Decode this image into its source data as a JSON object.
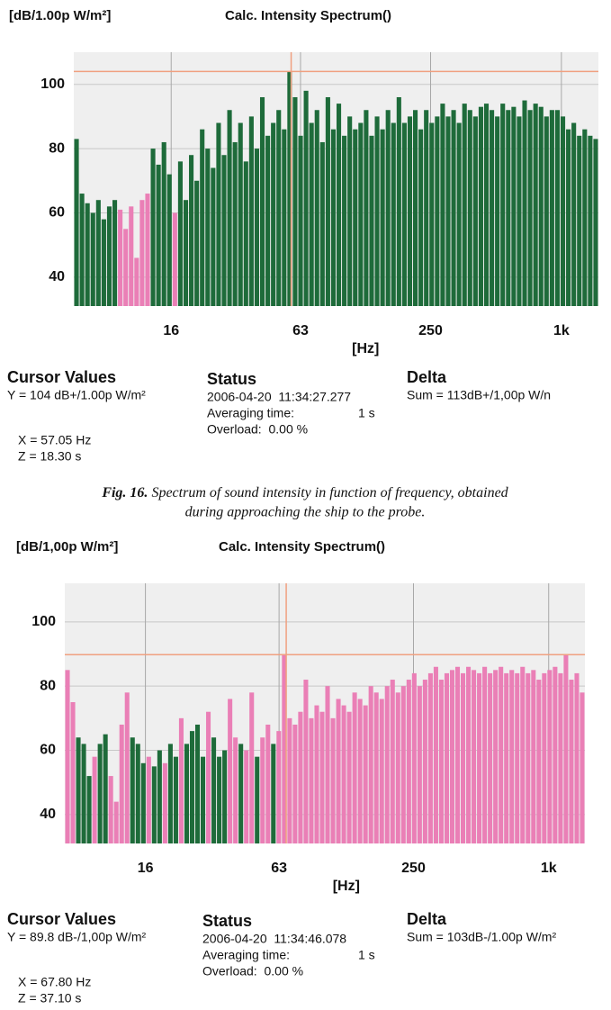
{
  "chart_data": [
    {
      "type": "bar",
      "y_unit": "[dB/1.00p W/m²]",
      "title": "Calc. Intensity Spectrum()",
      "x_label": "[Hz]",
      "xscale": "log",
      "xlim": [
        5.7,
        1480
      ],
      "xticks": [
        16,
        63,
        250,
        {
          "value": 1000,
          "label": "1k"
        }
      ],
      "ylim": [
        31,
        110
      ],
      "yticks": [
        40,
        60,
        80,
        100
      ],
      "grid": true,
      "categories": [
        null,
        null,
        null,
        null,
        null,
        null,
        null,
        null,
        null,
        null,
        null,
        null,
        null,
        null,
        null,
        null,
        null,
        null,
        null,
        null,
        null,
        null,
        null,
        null,
        null,
        null,
        null,
        null,
        null,
        null,
        null,
        null,
        null,
        null,
        null,
        null,
        null,
        null,
        null,
        null,
        null,
        null,
        null,
        null,
        null,
        null,
        null,
        null,
        null,
        null,
        null,
        null,
        null,
        null,
        null,
        null,
        null,
        null,
        null,
        null,
        null,
        null,
        null,
        null,
        null,
        null,
        null,
        null,
        null,
        null,
        null,
        null,
        null,
        null,
        null,
        null,
        null,
        null,
        null,
        null,
        null,
        null,
        null,
        null,
        null,
        null,
        null,
        null,
        null,
        null,
        null,
        null,
        null,
        null,
        null,
        null
      ],
      "values": [
        83,
        66,
        63,
        60,
        64,
        58,
        62,
        64,
        61,
        55,
        62,
        46,
        64,
        66,
        80,
        75,
        82,
        72,
        60,
        76,
        64,
        78,
        70,
        86,
        80,
        74,
        88,
        78,
        92,
        82,
        88,
        76,
        90,
        80,
        96,
        84,
        88,
        92,
        86,
        104,
        96,
        84,
        98,
        88,
        92,
        82,
        96,
        86,
        94,
        84,
        90,
        86,
        88,
        92,
        84,
        90,
        86,
        92,
        88,
        96,
        88,
        90,
        92,
        86,
        92,
        88,
        90,
        94,
        90,
        92,
        88,
        94,
        92,
        90,
        93,
        94,
        92,
        90,
        94,
        92,
        93,
        90,
        95,
        92,
        94,
        93,
        90,
        92,
        92,
        90,
        86,
        88,
        84,
        86,
        84,
        83
      ],
      "colors": [
        "#1e6b3a",
        "#1e6b3a",
        "#1e6b3a",
        "#1e6b3a",
        "#1e6b3a",
        "#1e6b3a",
        "#1e6b3a",
        "#1e6b3a",
        "#ea7fb6",
        "#ea7fb6",
        "#ea7fb6",
        "#ea7fb6",
        "#ea7fb6",
        "#ea7fb6",
        "#1e6b3a",
        "#1e6b3a",
        "#1e6b3a",
        "#1e6b3a",
        "#ea7fb6",
        "#1e6b3a",
        "#1e6b3a",
        "#1e6b3a",
        "#1e6b3a",
        "#1e6b3a",
        "#1e6b3a",
        "#1e6b3a",
        "#1e6b3a",
        "#1e6b3a",
        "#1e6b3a",
        "#1e6b3a",
        "#1e6b3a",
        "#1e6b3a",
        "#1e6b3a",
        "#1e6b3a",
        "#1e6b3a",
        "#1e6b3a",
        "#1e6b3a",
        "#1e6b3a",
        "#1e6b3a",
        "#1e6b3a",
        "#1e6b3a",
        "#1e6b3a",
        "#1e6b3a",
        "#1e6b3a",
        "#1e6b3a",
        "#1e6b3a",
        "#1e6b3a",
        "#1e6b3a",
        "#1e6b3a",
        "#1e6b3a",
        "#1e6b3a",
        "#1e6b3a",
        "#1e6b3a",
        "#1e6b3a",
        "#1e6b3a",
        "#1e6b3a",
        "#1e6b3a",
        "#1e6b3a",
        "#1e6b3a",
        "#1e6b3a",
        "#1e6b3a",
        "#1e6b3a",
        "#1e6b3a",
        "#1e6b3a",
        "#1e6b3a",
        "#1e6b3a",
        "#1e6b3a",
        "#1e6b3a",
        "#1e6b3a",
        "#1e6b3a",
        "#1e6b3a",
        "#1e6b3a",
        "#1e6b3a",
        "#1e6b3a",
        "#1e6b3a",
        "#1e6b3a",
        "#1e6b3a",
        "#1e6b3a",
        "#1e6b3a",
        "#1e6b3a",
        "#1e6b3a",
        "#1e6b3a",
        "#1e6b3a",
        "#1e6b3a",
        "#1e6b3a",
        "#1e6b3a",
        "#1e6b3a",
        "#1e6b3a",
        "#1e6b3a",
        "#1e6b3a",
        "#1e6b3a",
        "#1e6b3a",
        "#1e6b3a",
        "#1e6b3a",
        "#1e6b3a",
        "#1e6b3a"
      ],
      "cursor": {
        "x": 57.05,
        "y": 104,
        "color": "#f0a080"
      },
      "cursor_values": {
        "title": "Cursor Values",
        "y": "Y = 104 dB+/1.00p W/m²",
        "x": "X = 57.05 Hz",
        "z": "Z = 18.30 s"
      },
      "status": {
        "title": "Status",
        "time": "2006-04-20  11:34:27.277",
        "averaging_label": "Averaging time:",
        "averaging_value": "1 s",
        "overload": "Overload:  0.00 %"
      },
      "delta": {
        "title": "Delta",
        "sum": "Sum = 113dB+/1,00p W/n"
      }
    },
    {
      "type": "bar",
      "y_unit": "[dB/1,00p W/m²]",
      "title": "Calc. Intensity Spectrum()",
      "x_label": "[Hz]",
      "xscale": "log",
      "xlim": [
        7,
        1450
      ],
      "xticks": [
        16,
        63,
        250,
        {
          "value": 1000,
          "label": "1k"
        }
      ],
      "ylim": [
        31,
        112
      ],
      "yticks": [
        40,
        60,
        80,
        100
      ],
      "grid": true,
      "categories": [
        null,
        null,
        null,
        null,
        null,
        null,
        null,
        null,
        null,
        null,
        null,
        null,
        null,
        null,
        null,
        null,
        null,
        null,
        null,
        null,
        null,
        null,
        null,
        null,
        null,
        null,
        null,
        null,
        null,
        null,
        null,
        null,
        null,
        null,
        null,
        null,
        null,
        null,
        null,
        null,
        null,
        null,
        null,
        null,
        null,
        null,
        null,
        null,
        null,
        null,
        null,
        null,
        null,
        null,
        null,
        null,
        null,
        null,
        null,
        null,
        null,
        null,
        null,
        null,
        null,
        null,
        null,
        null,
        null,
        null,
        null,
        null,
        null,
        null,
        null,
        null,
        null,
        null,
        null,
        null,
        null,
        null,
        null,
        null,
        null,
        null,
        null,
        null,
        null,
        null,
        null,
        null,
        null,
        null,
        null,
        null
      ],
      "values": [
        85,
        75,
        64,
        62,
        52,
        58,
        62,
        65,
        52,
        44,
        68,
        78,
        64,
        62,
        56,
        58,
        55,
        60,
        56,
        62,
        58,
        70,
        62,
        66,
        68,
        58,
        72,
        64,
        58,
        60,
        76,
        64,
        62,
        60,
        78,
        58,
        64,
        68,
        62,
        66,
        90,
        70,
        68,
        72,
        82,
        70,
        74,
        72,
        80,
        70,
        76,
        74,
        72,
        78,
        76,
        74,
        80,
        78,
        76,
        80,
        82,
        78,
        80,
        82,
        84,
        80,
        82,
        84,
        86,
        82,
        84,
        85,
        86,
        84,
        86,
        85,
        84,
        86,
        84,
        85,
        86,
        84,
        85,
        84,
        86,
        84,
        85,
        82,
        84,
        85,
        86,
        84,
        90,
        82,
        84,
        78
      ],
      "colors": [
        "#ea7fb6",
        "#ea7fb6",
        "#1e6b3a",
        "#1e6b3a",
        "#1e6b3a",
        "#ea7fb6",
        "#1e6b3a",
        "#1e6b3a",
        "#ea7fb6",
        "#ea7fb6",
        "#ea7fb6",
        "#ea7fb6",
        "#1e6b3a",
        "#1e6b3a",
        "#1e6b3a",
        "#ea7fb6",
        "#1e6b3a",
        "#1e6b3a",
        "#ea7fb6",
        "#1e6b3a",
        "#1e6b3a",
        "#ea7fb6",
        "#1e6b3a",
        "#1e6b3a",
        "#1e6b3a",
        "#1e6b3a",
        "#ea7fb6",
        "#1e6b3a",
        "#1e6b3a",
        "#1e6b3a",
        "#ea7fb6",
        "#ea7fb6",
        "#1e6b3a",
        "#ea7fb6",
        "#ea7fb6",
        "#1e6b3a",
        "#ea7fb6",
        "#ea7fb6",
        "#1e6b3a",
        "#ea7fb6",
        "#ea7fb6",
        "#ea7fb6",
        "#ea7fb6",
        "#ea7fb6",
        "#ea7fb6",
        "#ea7fb6",
        "#ea7fb6",
        "#ea7fb6",
        "#ea7fb6",
        "#ea7fb6",
        "#ea7fb6",
        "#ea7fb6",
        "#ea7fb6",
        "#ea7fb6",
        "#ea7fb6",
        "#ea7fb6",
        "#ea7fb6",
        "#ea7fb6",
        "#ea7fb6",
        "#ea7fb6",
        "#ea7fb6",
        "#ea7fb6",
        "#ea7fb6",
        "#ea7fb6",
        "#ea7fb6",
        "#ea7fb6",
        "#ea7fb6",
        "#ea7fb6",
        "#ea7fb6",
        "#ea7fb6",
        "#ea7fb6",
        "#ea7fb6",
        "#ea7fb6",
        "#ea7fb6",
        "#ea7fb6",
        "#ea7fb6",
        "#ea7fb6",
        "#ea7fb6",
        "#ea7fb6",
        "#ea7fb6",
        "#ea7fb6",
        "#ea7fb6",
        "#ea7fb6",
        "#ea7fb6",
        "#ea7fb6",
        "#ea7fb6",
        "#ea7fb6",
        "#ea7fb6",
        "#ea7fb6",
        "#ea7fb6",
        "#ea7fb6",
        "#ea7fb6",
        "#ea7fb6",
        "#ea7fb6",
        "#ea7fb6",
        "#ea7fb6"
      ],
      "cursor": {
        "x": 67.8,
        "y": 89.8,
        "color": "#f0a080"
      },
      "cursor_values": {
        "title": "Cursor Values",
        "y": "Y = 89.8 dB-/1,00p W/m²",
        "x": "X = 67.80 Hz",
        "z": "Z = 37.10 s"
      },
      "status": {
        "title": "Status",
        "time": "2006-04-20  11:34:46.078",
        "averaging_label": "Averaging time:",
        "averaging_value": "1 s",
        "overload": "Overload:  0.00 %"
      },
      "delta": {
        "title": "Delta",
        "sum": "Sum = 103dB-/1.00p W/m²"
      }
    }
  ],
  "caption": {
    "label": "Fig. 16.",
    "lines": [
      "Spectrum of sound intensity in function of frequency, obtained",
      "during approaching the ship to the probe."
    ]
  }
}
